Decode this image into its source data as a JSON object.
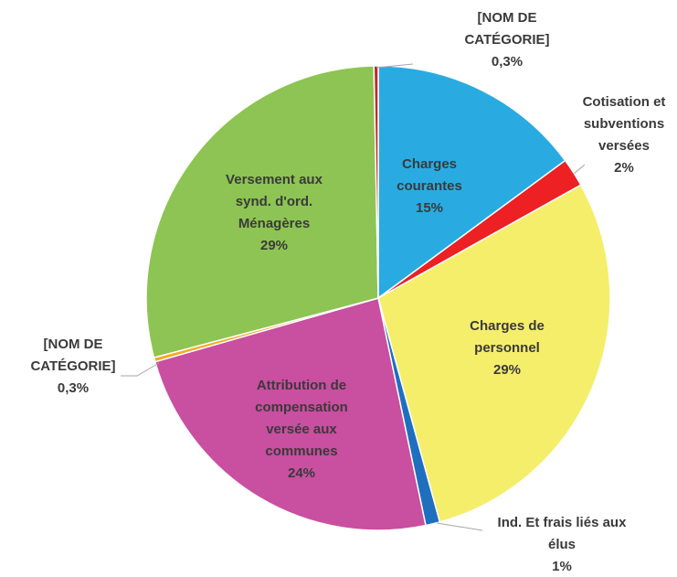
{
  "chart_data": {
    "type": "pie",
    "categories": [
      "Charges courantes",
      "Cotisation et subventions versées",
      "Charges de personnel",
      "Ind. Et frais liés aux élus",
      "Attribution de compensation versée aux communes",
      "[NOM DE CATÉGORIE]",
      "Versement aux synd. d'ord. Ménagères",
      "[NOM DE CATÉGORIE]"
    ],
    "values": [
      15,
      2,
      29,
      1,
      24,
      0.3,
      29,
      0.3
    ],
    "value_labels": [
      "15%",
      "2%",
      "29%",
      "1%",
      "24%",
      "0,3%",
      "29%",
      "0,3%"
    ],
    "colors": [
      "#29abe2",
      "#ed2024",
      "#f5ee6b",
      "#1f6fbf",
      "#c94fa0",
      "#f7a823",
      "#8dc453",
      "#c0272d"
    ]
  }
}
